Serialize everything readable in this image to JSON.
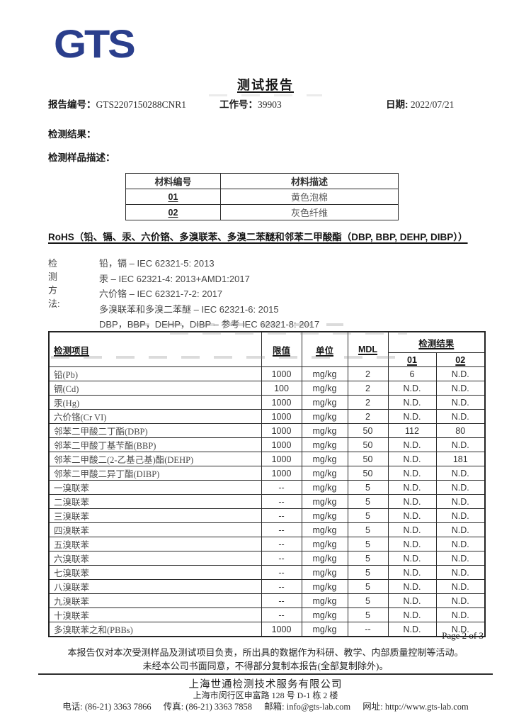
{
  "logo": {
    "text": "GTS",
    "color": "#2a3e8c"
  },
  "title": "测试报告",
  "header": {
    "report_no_label": "报告编号：",
    "report_no": "GTS2207150288CNR1",
    "job_no_label": "工作号：",
    "job_no": "39903",
    "date_label": "日期:",
    "date": "2022/07/21"
  },
  "sections": {
    "result_label": "检测结果：",
    "sample_desc_label": "检测样品描述："
  },
  "material_table": {
    "headers": [
      "材料编号",
      "材料描述"
    ],
    "rows": [
      {
        "id": "01",
        "desc": "黄色泡棉"
      },
      {
        "id": "02",
        "desc": "灰色纤维"
      }
    ]
  },
  "rohs_title": "RoHS（铅、镉、汞、六价铬、多溴联苯、多溴二苯醚和邻苯二甲酸酯（DBP, BBP, DEHP, DIBP））",
  "methods": {
    "label": "检测方法:",
    "lines": [
      "铅，镉 – IEC 62321-5: 2013",
      "汞 – IEC 62321-4: 2013+AMD1:2017",
      "六价铬 – IEC 62321-7-2: 2017",
      "多溴联苯和多溴二苯醚 – IEC 62321-6: 2015",
      "DBP，BBP，DEHP，DIBP – 参考 IEC 62321-8: 2017"
    ]
  },
  "results_table": {
    "col_item": "检测项目",
    "col_limit": "限值",
    "col_unit": "单位",
    "col_mdl": "MDL",
    "col_result": "检测结果",
    "sub_col_01": "01",
    "sub_col_02": "02",
    "rows": [
      [
        "铅(Pb)",
        "1000",
        "mg/kg",
        "2",
        "6",
        "N.D."
      ],
      [
        "镉(Cd)",
        "100",
        "mg/kg",
        "2",
        "N.D.",
        "N.D."
      ],
      [
        "汞(Hg)",
        "1000",
        "mg/kg",
        "2",
        "N.D.",
        "N.D."
      ],
      [
        "六价铬(Cr VI)",
        "1000",
        "mg/kg",
        "2",
        "N.D.",
        "N.D."
      ],
      [
        "邻苯二甲酸二丁酯(DBP)",
        "1000",
        "mg/kg",
        "50",
        "112",
        "80"
      ],
      [
        "邻苯二甲酸丁基苄酯(BBP)",
        "1000",
        "mg/kg",
        "50",
        "N.D.",
        "N.D."
      ],
      [
        "邻苯二甲酸二(2-乙基己基)酯(DEHP)",
        "1000",
        "mg/kg",
        "50",
        "N.D.",
        "181"
      ],
      [
        "邻苯二甲酸二异丁酯(DIBP)",
        "1000",
        "mg/kg",
        "50",
        "N.D.",
        "N.D."
      ],
      [
        "一溴联苯",
        "--",
        "mg/kg",
        "5",
        "N.D.",
        "N.D."
      ],
      [
        "二溴联苯",
        "--",
        "mg/kg",
        "5",
        "N.D.",
        "N.D."
      ],
      [
        "三溴联苯",
        "--",
        "mg/kg",
        "5",
        "N.D.",
        "N.D."
      ],
      [
        "四溴联苯",
        "--",
        "mg/kg",
        "5",
        "N.D.",
        "N.D."
      ],
      [
        "五溴联苯",
        "--",
        "mg/kg",
        "5",
        "N.D.",
        "N.D."
      ],
      [
        "六溴联苯",
        "--",
        "mg/kg",
        "5",
        "N.D.",
        "N.D."
      ],
      [
        "七溴联苯",
        "--",
        "mg/kg",
        "5",
        "N.D.",
        "N.D."
      ],
      [
        "八溴联苯",
        "--",
        "mg/kg",
        "5",
        "N.D.",
        "N.D."
      ],
      [
        "九溴联苯",
        "--",
        "mg/kg",
        "5",
        "N.D.",
        "N.D."
      ],
      [
        "十溴联苯",
        "--",
        "mg/kg",
        "5",
        "N.D.",
        "N.D."
      ],
      [
        "多溴联苯之和(PBBs)",
        "1000",
        "mg/kg",
        "--",
        "N.D.",
        "N.D."
      ]
    ]
  },
  "footer": {
    "page_number": "Page 2 of 3",
    "disclaimer_line1": "本报告仅对本次受测样品及测试项目负责，所出具的数据作为科研、教学、内部质量控制等活动。",
    "disclaimer_line2": "未经本公司书面同意，不得部分复制本报告(全部复制除外)。",
    "company": "上海世通检测技术服务有限公司",
    "address": "上海市闵行区申富路 128 号 D-1 栋 2 楼",
    "contact_parts": [
      "电话: (86-21) 3363 7866",
      "传真: (86-21) 3363 7858",
      "邮箱: info@gts-lab.com",
      "网址: http://www.gts-lab.com"
    ]
  }
}
